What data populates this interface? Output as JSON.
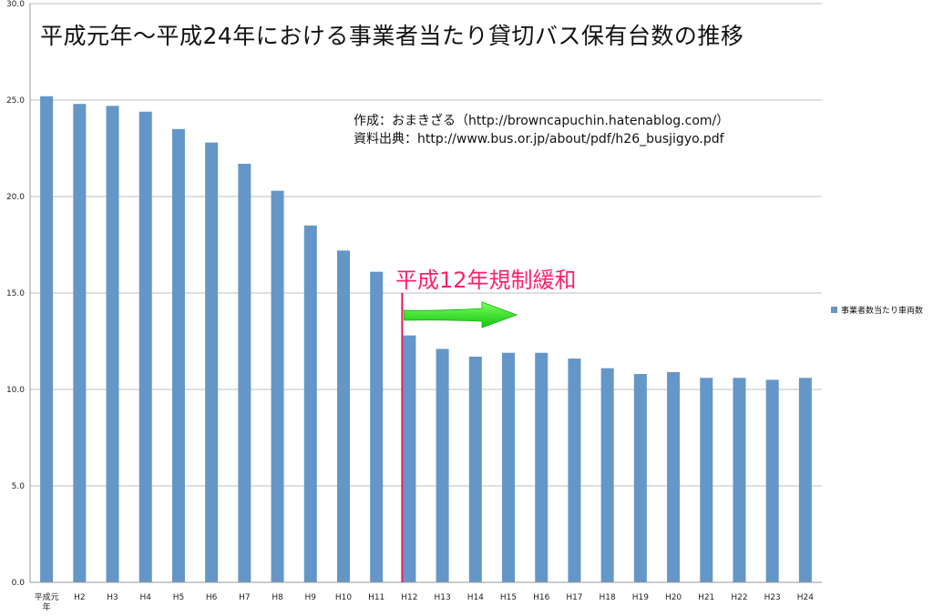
{
  "chart_data": {
    "type": "bar",
    "title": "平成元年〜平成24年における事業者当たり貸切バス保有台数の推移",
    "credits": [
      "作成：おまきざる（http://browncapuchin.hatenablog.com/）",
      "資料出典：http://www.bus.or.jp/about/pdf/h26_busjigyo.pdf"
    ],
    "annotation": "平成12年規制緩和",
    "annotation_marker_category": "H12",
    "categories": [
      "平成元年",
      "H2",
      "H3",
      "H4",
      "H5",
      "H6",
      "H7",
      "H8",
      "H9",
      "H10",
      "H11",
      "H12",
      "H13",
      "H14",
      "H15",
      "H16",
      "H17",
      "H18",
      "H19",
      "H20",
      "H21",
      "H22",
      "H23",
      "H24"
    ],
    "series": [
      {
        "name": "事業者数当たり車両数",
        "values": [
          25.2,
          24.8,
          24.7,
          24.4,
          23.5,
          22.8,
          21.7,
          20.3,
          18.5,
          17.2,
          16.1,
          12.8,
          12.1,
          11.7,
          11.9,
          11.9,
          11.6,
          11.1,
          10.8,
          10.9,
          10.6,
          10.6,
          10.5,
          10.6
        ],
        "color": "#6496c8"
      }
    ],
    "ylim": [
      0,
      30
    ],
    "yticks": [
      "0.0",
      "5.0",
      "10.0",
      "15.0",
      "20.0",
      "25.0",
      "30.0"
    ],
    "grid": true,
    "legend_position": "right",
    "colors": {
      "bar": "#6496c8",
      "marker": "#e8185e",
      "annotation": "#ff1f6e",
      "arrow": "#22dd22",
      "grid": "#bfbfbf"
    }
  }
}
